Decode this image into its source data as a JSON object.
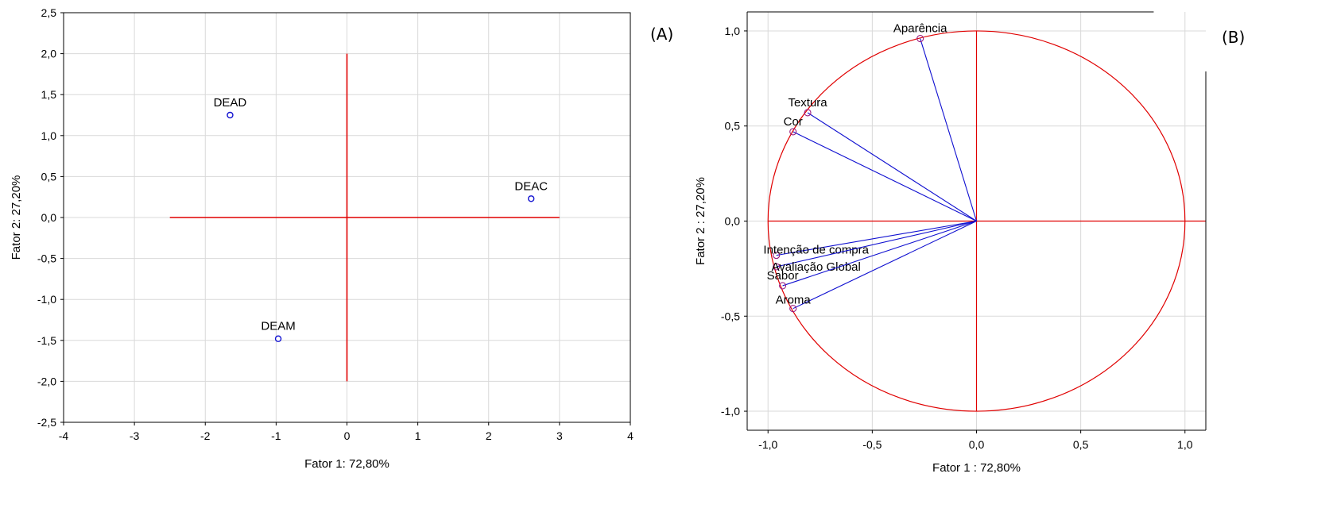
{
  "chart_data": [
    {
      "type": "scatter",
      "panel_label": "(A)",
      "xlabel": "Fator 1: 72,80%",
      "ylabel": "Fator 2: 27,20%",
      "xlim": [
        -4,
        4
      ],
      "ylim": [
        -2.5,
        2.5
      ],
      "x_ticks": [
        "-4",
        "-3",
        "-2",
        "-1",
        "0",
        "1",
        "2",
        "3",
        "4"
      ],
      "y_ticks": [
        "2,5",
        "2,0",
        "1,5",
        "1,0",
        "0,5",
        "0,0",
        "-0,5",
        "-1,0",
        "-1,5",
        "-2,0",
        "-2,5"
      ],
      "grid": true,
      "reference_lines": {
        "horizontal_x_range": [
          -2.5,
          3.0
        ],
        "vertical_y_range": [
          -2.0,
          2.0
        ]
      },
      "points": [
        {
          "label": "DEAD",
          "x": -1.65,
          "y": 1.25
        },
        {
          "label": "DEAC",
          "x": 2.6,
          "y": 0.23
        },
        {
          "label": "DEAM",
          "x": -0.97,
          "y": -1.48
        }
      ],
      "colors": {
        "points": "#1010d0",
        "reference": "#e00000",
        "grid": "#d9d9d9"
      }
    },
    {
      "type": "scatter",
      "panel_label": "(B)",
      "xlabel": "Fator 1 : 72,80%",
      "ylabel": "Fator 2 : 27,20%",
      "xlim": [
        -1.1,
        1.1
      ],
      "ylim": [
        -1.1,
        1.1
      ],
      "x_ticks": [
        "-1,0",
        "-0,5",
        "0,0",
        "0,5",
        "1,0"
      ],
      "y_ticks": [
        "1,0",
        "0,5",
        "0,0",
        "-0,5",
        "-1,0"
      ],
      "grid": true,
      "unit_circle": true,
      "vectors": [
        {
          "label": "Aparência",
          "x": -0.27,
          "y": 0.96
        },
        {
          "label": "Textura",
          "x": -0.81,
          "y": 0.57
        },
        {
          "label": "Cor",
          "x": -0.88,
          "y": 0.47
        },
        {
          "label": "Intenção de compra",
          "x": -0.96,
          "y": -0.18
        },
        {
          "label": "Avaliação Global",
          "x": -0.96,
          "y": -0.24
        },
        {
          "label": "Sabor",
          "x": -0.93,
          "y": -0.34
        },
        {
          "label": "Aroma",
          "x": -0.88,
          "y": -0.46
        }
      ],
      "colors": {
        "vectors": "#1010d0",
        "circle": "#e00000",
        "grid": "#d9d9d9",
        "markers": "#9a1a80"
      }
    }
  ]
}
